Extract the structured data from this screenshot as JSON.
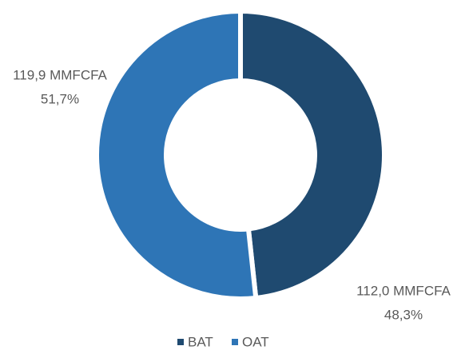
{
  "chart_data": {
    "type": "donut",
    "categories": [
      "BAT",
      "OAT"
    ],
    "series": [
      {
        "name": "Series",
        "values": [
          112.0,
          119.9
        ],
        "colors": [
          "#1f4a70",
          "#2e75b6"
        ],
        "value_labels": [
          "112,0 MMFCFA",
          "119,9 MMFCFA"
        ],
        "percent_labels": [
          "48,3%",
          "51,7%"
        ]
      }
    ],
    "legend": "bottom"
  }
}
